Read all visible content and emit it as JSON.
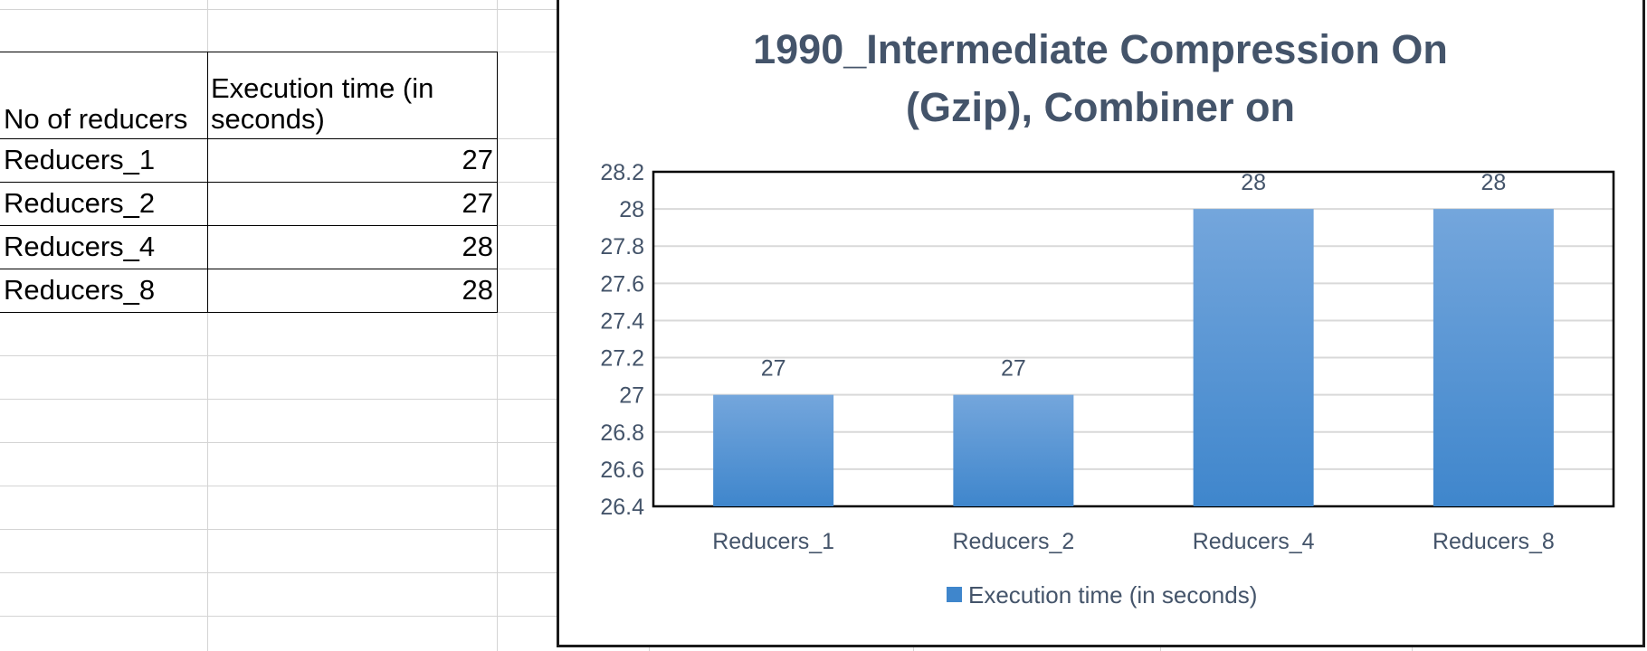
{
  "table": {
    "headers": [
      "No of reducers",
      "Execution time (in seconds)"
    ],
    "rows": [
      {
        "label": "Reducers_1",
        "value": "27"
      },
      {
        "label": "Reducers_2",
        "value": "27"
      },
      {
        "label": "Reducers_4",
        "value": "28"
      },
      {
        "label": "Reducers_8",
        "value": "28"
      }
    ]
  },
  "chart_data": {
    "type": "bar",
    "title": "1990_Intermediate Compression On (Gzip), Combiner on",
    "title_lines": [
      "1990_Intermediate Compression On",
      "(Gzip), Combiner on"
    ],
    "categories": [
      "Reducers_1",
      "Reducers_2",
      "Reducers_4",
      "Reducers_8"
    ],
    "series": [
      {
        "name": "Execution time (in seconds)",
        "values": [
          27,
          27,
          28,
          28
        ]
      }
    ],
    "ylim": [
      26.4,
      28.2
    ],
    "yticks": [
      "26.4",
      "26.6",
      "26.8",
      "27",
      "27.2",
      "27.4",
      "27.6",
      "27.8",
      "28",
      "28.2"
    ],
    "data_labels": [
      "27",
      "27",
      "28",
      "28"
    ],
    "xlabel": "",
    "ylabel": "",
    "grid": true,
    "legend": "bottom",
    "bar_color_top": "#74a6dc",
    "bar_color_bottom": "#3f86cc",
    "text_color": "#44546a",
    "grid_color": "#d9d9d9"
  }
}
